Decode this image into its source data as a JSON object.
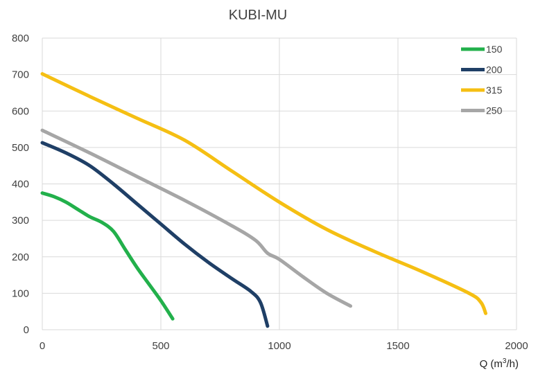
{
  "chart_data": {
    "type": "line",
    "title": "KUBI-MU",
    "xlabel": "Q (m³/h)",
    "xlabel_parts": {
      "pre": "Q (m",
      "sup": "3",
      "post": "/h)"
    },
    "ylabel": "",
    "xlim": [
      0,
      2000
    ],
    "ylim": [
      0,
      800
    ],
    "x_ticks": [
      0,
      500,
      1000,
      1500,
      2000
    ],
    "y_ticks": [
      0,
      100,
      200,
      300,
      400,
      500,
      600,
      700,
      800
    ],
    "x_tick_labels": [
      "0",
      "500",
      "1000",
      "1500",
      "2000"
    ],
    "y_tick_labels": [
      "0",
      "100",
      "200",
      "300",
      "400",
      "500",
      "600",
      "700",
      "800"
    ],
    "grid": true,
    "legend_position": "top-right",
    "series": [
      {
        "name": "150",
        "color": "#22b04b",
        "points": [
          [
            0,
            375
          ],
          [
            50,
            365
          ],
          [
            100,
            350
          ],
          [
            150,
            330
          ],
          [
            200,
            310
          ],
          [
            250,
            295
          ],
          [
            300,
            270
          ],
          [
            350,
            220
          ],
          [
            400,
            170
          ],
          [
            450,
            125
          ],
          [
            500,
            80
          ],
          [
            550,
            30
          ]
        ]
      },
      {
        "name": "200",
        "color": "#1f3f66",
        "points": [
          [
            0,
            513
          ],
          [
            100,
            485
          ],
          [
            200,
            450
          ],
          [
            300,
            400
          ],
          [
            400,
            345
          ],
          [
            500,
            290
          ],
          [
            600,
            235
          ],
          [
            700,
            185
          ],
          [
            800,
            140
          ],
          [
            880,
            105
          ],
          [
            920,
            75
          ],
          [
            950,
            10
          ]
        ]
      },
      {
        "name": "315",
        "color": "#f5bf13",
        "points": [
          [
            0,
            702
          ],
          [
            200,
            640
          ],
          [
            400,
            580
          ],
          [
            600,
            520
          ],
          [
            800,
            435
          ],
          [
            1000,
            350
          ],
          [
            1200,
            275
          ],
          [
            1400,
            215
          ],
          [
            1600,
            160
          ],
          [
            1800,
            100
          ],
          [
            1850,
            75
          ],
          [
            1870,
            45
          ]
        ]
      },
      {
        "name": "250",
        "color": "#a6a6a6",
        "points": [
          [
            0,
            547
          ],
          [
            200,
            485
          ],
          [
            400,
            420
          ],
          [
            600,
            355
          ],
          [
            800,
            285
          ],
          [
            900,
            245
          ],
          [
            950,
            210
          ],
          [
            1000,
            193
          ],
          [
            1100,
            145
          ],
          [
            1200,
            100
          ],
          [
            1300,
            65
          ]
        ]
      }
    ]
  }
}
